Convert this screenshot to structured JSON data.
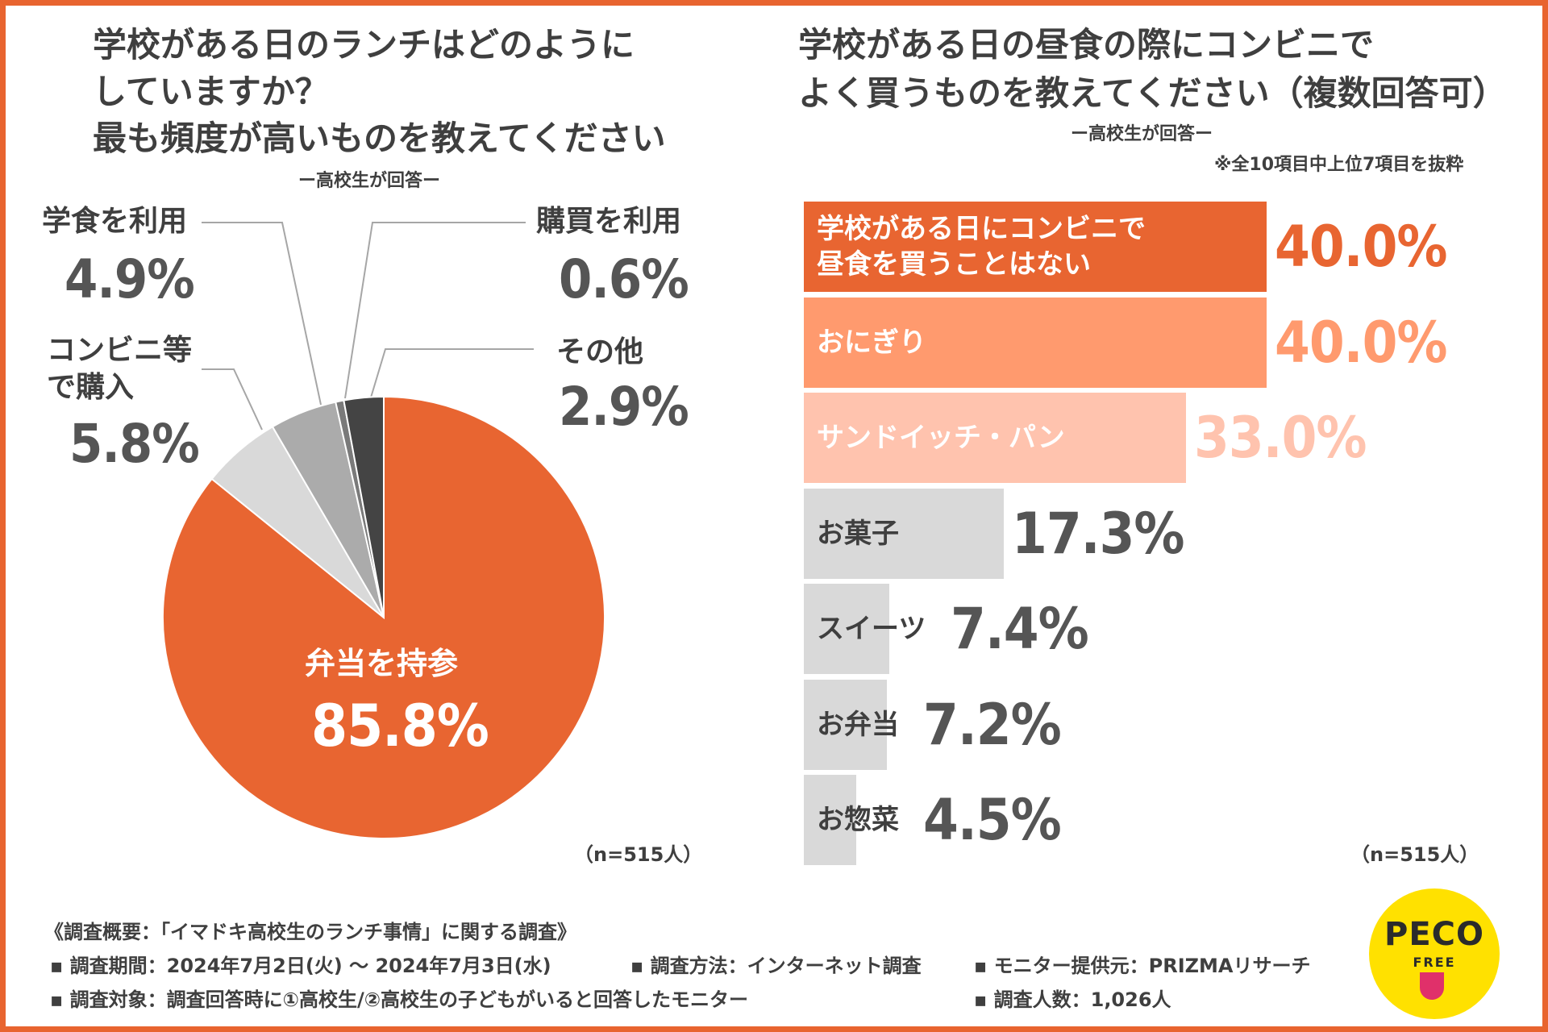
{
  "colors": {
    "border": "#e8642f",
    "accent": "#e86531",
    "mid": "#ff9a6e",
    "light": "#ffc3ae",
    "gray": "#d9d9d9"
  },
  "left": {
    "title_line1": "学校がある日のランチはどのように",
    "title_line2": "していますか？",
    "title_line3": "最も頻度が高いものを教えてください",
    "subtitle": "ー高校生が回答ー",
    "n_note": "（n=515人）"
  },
  "right": {
    "title_line1": "学校がある日の昼食の際にコンビニで",
    "title_line2": "よく買うものを教えてください（複数回答可）",
    "subtitle": "ー高校生が回答ー",
    "note": "※全10項目中上位7項目を抜粋",
    "n_note": "（n=515人）"
  },
  "chart_data": [
    {
      "type": "pie",
      "title": "学校がある日のランチはどのようにしていますか？最も頻度が高いものを教えてください",
      "slices": [
        {
          "label": "弁当を持参",
          "value": 85.8,
          "display": "85.8%",
          "color": "#e86531"
        },
        {
          "label": "コンビニ等で購入",
          "label_line1": "コンビニ等",
          "label_line2": "で購入",
          "value": 5.8,
          "display": "5.8%",
          "color": "#d9d9d9"
        },
        {
          "label": "学食を利用",
          "value": 4.9,
          "display": "4.9%",
          "color": "#ababab"
        },
        {
          "label": "購買を利用",
          "value": 0.6,
          "display": "0.6%",
          "color": "#7a7a7a"
        },
        {
          "label": "その他",
          "value": 2.9,
          "display": "2.9%",
          "color": "#444444"
        }
      ]
    },
    {
      "type": "bar",
      "orientation": "horizontal",
      "title": "学校がある日の昼食の際にコンビニでよく買うものを教えてください（複数回答可）",
      "xlim": [
        0,
        40
      ],
      "bars": [
        {
          "label": "学校がある日にコンビニで昼食を買うことはない",
          "label_line1": "学校がある日にコンビニで",
          "label_line2": "昼食を買うことはない",
          "value": 40.0,
          "display": "40.0%",
          "color": "#e86531",
          "text_color": "#ffffff",
          "value_color": "#e86531"
        },
        {
          "label": "おにぎり",
          "value": 40.0,
          "display": "40.0%",
          "color": "#ff9a6e",
          "text_color": "#ffffff",
          "value_color": "#ff9a6e"
        },
        {
          "label": "サンドイッチ・パン",
          "value": 33.0,
          "display": "33.0%",
          "color": "#ffc3ae",
          "text_color": "#ffffff",
          "value_color": "#ffc3ae"
        },
        {
          "label": "お菓子",
          "value": 17.3,
          "display": "17.3%",
          "color": "#d9d9d9",
          "text_color": "#3f3f3f",
          "value_color": "#555555"
        },
        {
          "label": "スイーツ",
          "value": 7.4,
          "display": "7.4%",
          "color": "#d9d9d9",
          "text_color": "#3f3f3f",
          "value_color": "#555555"
        },
        {
          "label": "お弁当",
          "value": 7.2,
          "display": "7.2%",
          "color": "#d9d9d9",
          "text_color": "#3f3f3f",
          "value_color": "#555555"
        },
        {
          "label": "お惣菜",
          "value": 4.5,
          "display": "4.5%",
          "color": "#d9d9d9",
          "text_color": "#3f3f3f",
          "value_color": "#555555"
        }
      ]
    }
  ],
  "footer": {
    "heading": "《調査概要：「イマドキ高校生のランチ事情」に関する調査》",
    "period": "▪ 調査期間：2024年7月2日(火) 〜 2024年7月3日(水)",
    "method": "▪ 調査方法：インターネット調査",
    "provider": "▪ モニター提供元：PRIZMAリサーチ",
    "target": "▪ 調査対象：調査回答時に①高校生/②高校生の子どもがいると回答したモニター",
    "count": "▪ 調査人数：1,026人"
  },
  "logo": {
    "line1": "PECO",
    "line2": "FREE"
  }
}
